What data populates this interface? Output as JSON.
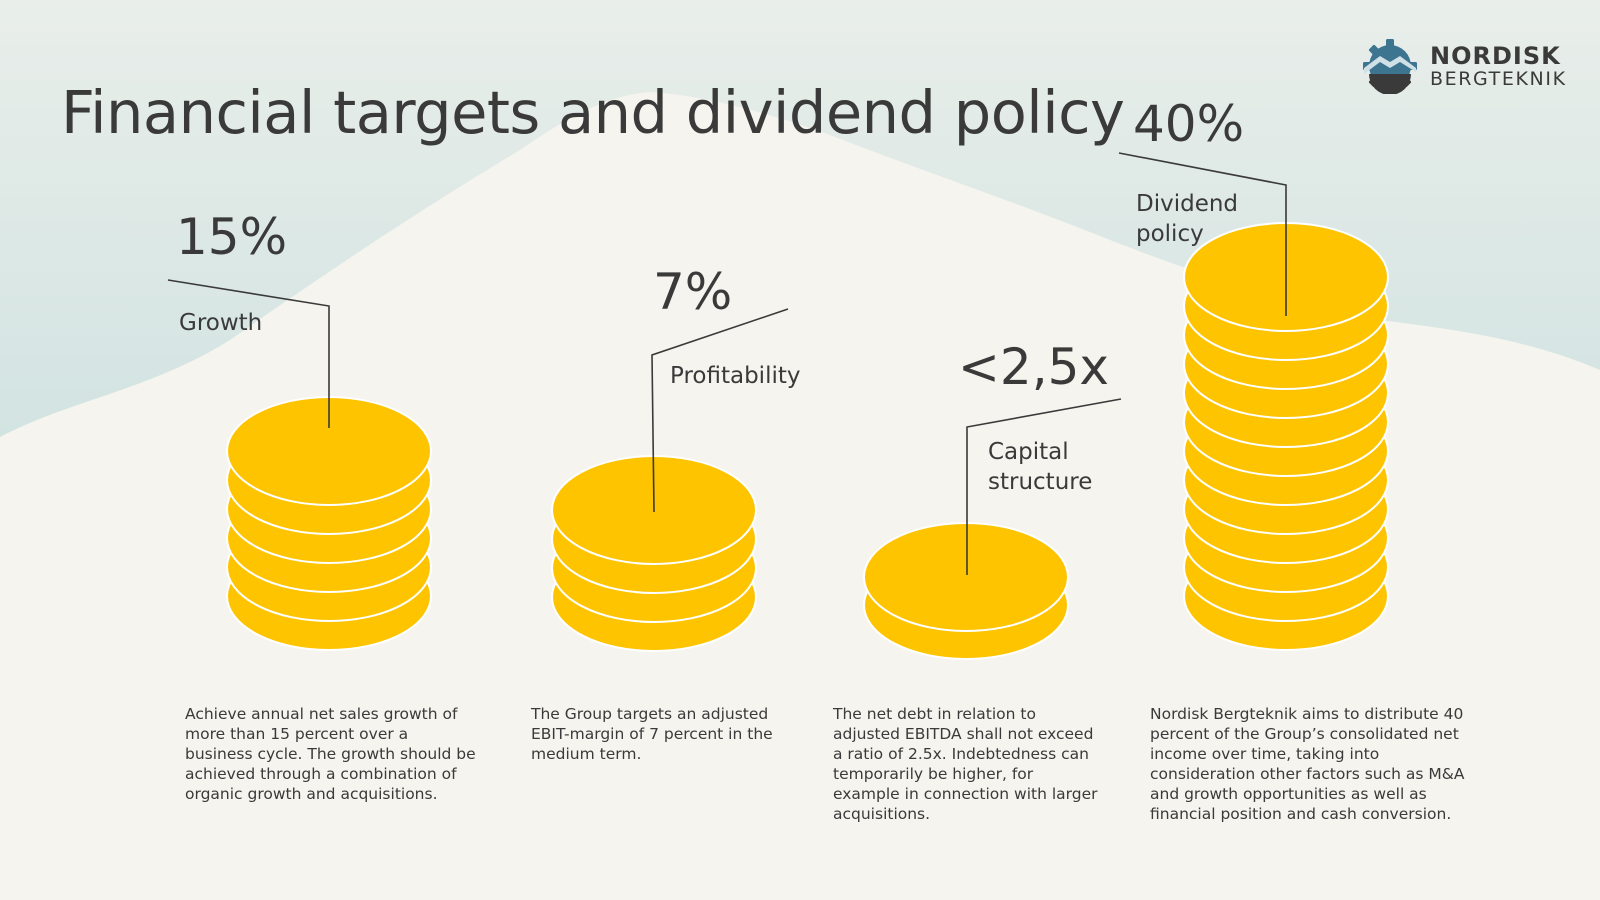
{
  "title": "Financial targets and dividend policy",
  "logo": {
    "line1": "NORDISK",
    "line2": "BERGTEKNIK",
    "icon": "mountain-gear-logo"
  },
  "colors": {
    "background": "#f5f4ee",
    "sky_top": "#e4eae6",
    "sky_bottom": "#a9d1d6",
    "coin": "#fec400",
    "coin_edge": "#ffffff",
    "text": "#3a3a3a",
    "logo_blue": "#3d7490",
    "logo_dark": "#3a3a3a"
  },
  "targets": [
    {
      "id": "growth",
      "value": "15%",
      "label": "Growth",
      "coins": 6,
      "description": "Achieve annual net sales growth of more than 15 percent over a business cycle. The growth should be achieved through a combination of organic growth and acquisitions."
    },
    {
      "id": "profitability",
      "value": "7%",
      "label": "Profitability",
      "coins": 4,
      "description": "The Group targets an adjusted EBIT-margin of 7 percent in the medium term."
    },
    {
      "id": "capital-structure",
      "value": "<2,5x",
      "label": "Capital structure",
      "coins": 2,
      "description": "The net debt in relation to adjusted EBITDA shall not exceed a ratio of 2.5x. Indebtedness can temporarily be higher, for example in connection with larger acquisitions."
    },
    {
      "id": "dividend-policy",
      "value": "40%",
      "label": "Dividend policy",
      "coins": 12,
      "description": "Nordisk Bergteknik aims to distribute 40 percent of the Group’s consolidated net income over time, taking into consideration other factors such as M&A and growth opportunities as well as financial position and cash conversion."
    }
  ]
}
